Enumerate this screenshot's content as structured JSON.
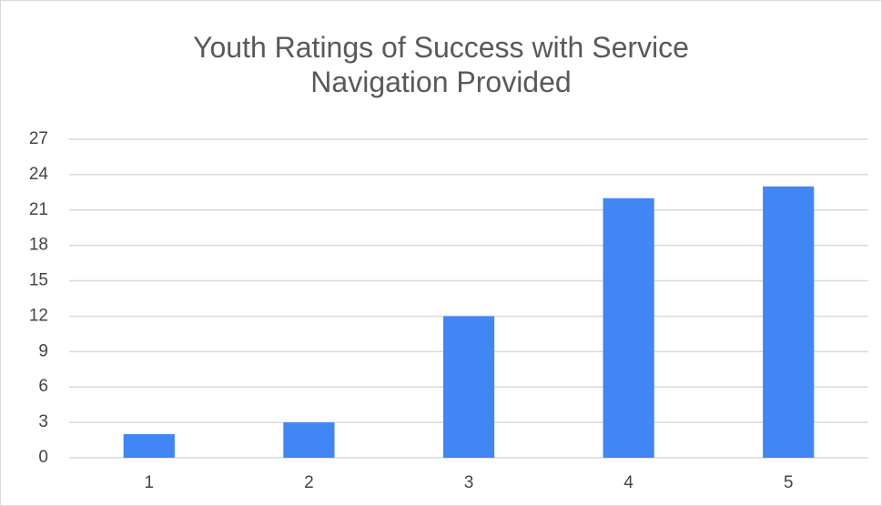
{
  "chart_data": {
    "type": "bar",
    "title": "Youth Ratings of Success with Service Navigation Provided",
    "categories": [
      "1",
      "2",
      "3",
      "4",
      "5"
    ],
    "values": [
      2,
      3,
      12,
      22,
      23
    ],
    "color": "#4285f4",
    "ylim": [
      0,
      27
    ],
    "yticks": [
      0,
      3,
      6,
      9,
      12,
      15,
      18,
      21,
      24,
      27
    ],
    "grid": true
  }
}
